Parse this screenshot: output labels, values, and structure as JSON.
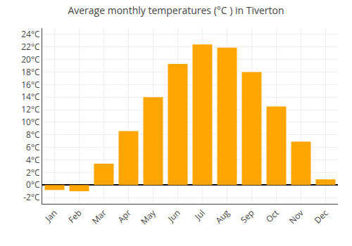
{
  "chart_data": {
    "type": "bar",
    "title": "Average monthly temperatures (°C ) in Tiverton",
    "categories": [
      "Jan",
      "Feb",
      "Mar",
      "Apr",
      "May",
      "Jun",
      "Jul",
      "Aug",
      "Sep",
      "Oct",
      "Nov",
      "Dec"
    ],
    "values": [
      -0.8,
      -1.0,
      3.4,
      8.6,
      14.0,
      19.3,
      22.4,
      21.9,
      18.0,
      12.5,
      6.9,
      0.9
    ],
    "color": "#FFA500",
    "ylim": [
      -3,
      25
    ],
    "yticks": [
      {
        "value": -2,
        "label": "-2°C"
      },
      {
        "value": 0,
        "label": "0°C"
      },
      {
        "value": 2,
        "label": "2°C"
      },
      {
        "value": 4,
        "label": "4°C"
      },
      {
        "value": 6,
        "label": "6°C"
      },
      {
        "value": 8,
        "label": "8°C"
      },
      {
        "value": 10,
        "label": "10°C"
      },
      {
        "value": 12,
        "label": "12°C"
      },
      {
        "value": 14,
        "label": "14°C"
      },
      {
        "value": 16,
        "label": "16°C"
      },
      {
        "value": 18,
        "label": "18°C"
      },
      {
        "value": 20,
        "label": "20°C"
      },
      {
        "value": 22,
        "label": "22°C"
      },
      {
        "value": 24,
        "label": "24°C"
      }
    ],
    "grid": true
  }
}
